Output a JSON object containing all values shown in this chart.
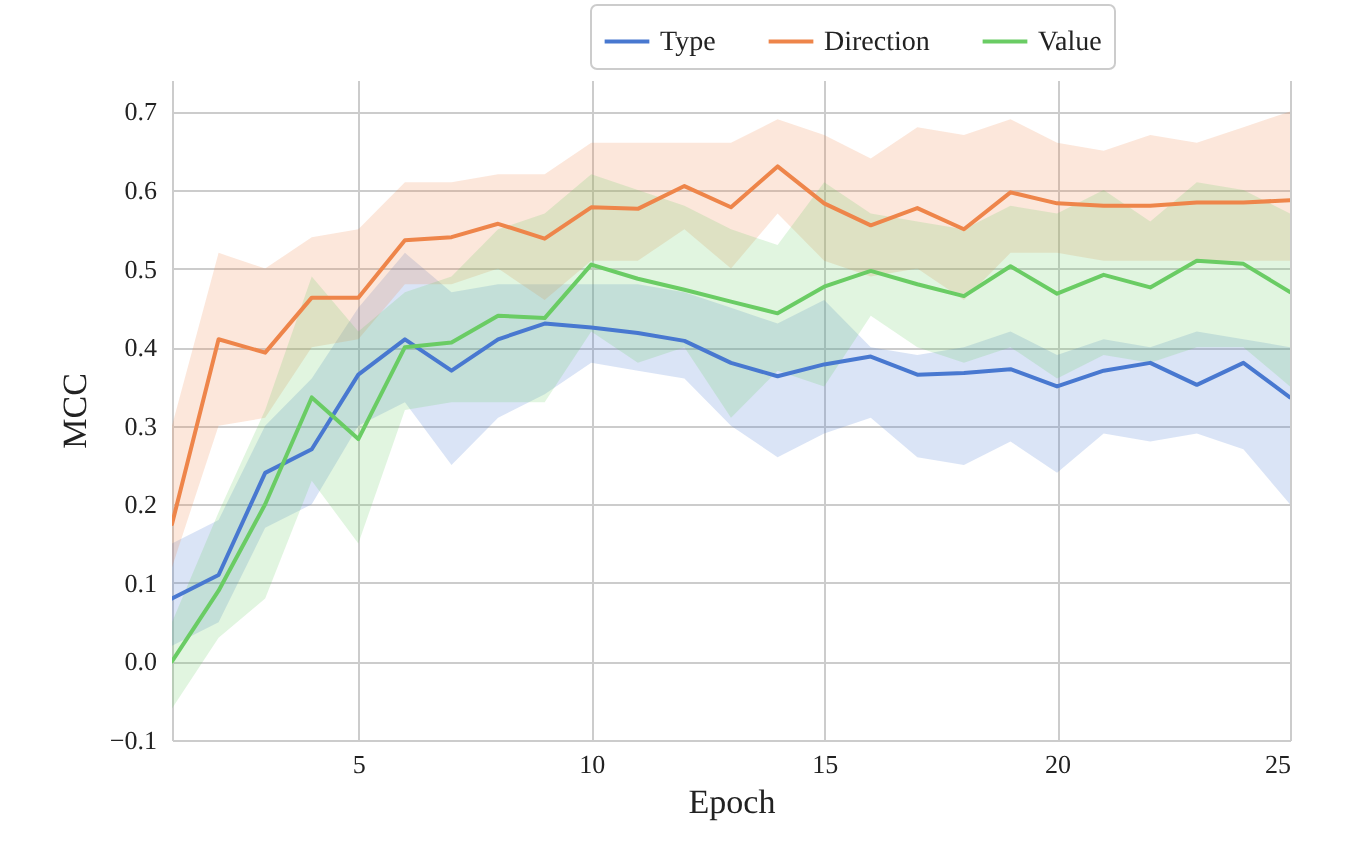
{
  "chart_data": {
    "type": "line",
    "xlabel": "Epoch",
    "ylabel": "MCC",
    "x": [
      1,
      2,
      3,
      4,
      5,
      6,
      7,
      8,
      9,
      10,
      11,
      12,
      13,
      14,
      15,
      16,
      17,
      18,
      19,
      20,
      21,
      22,
      23,
      24,
      25
    ],
    "xlim": [
      1,
      25
    ],
    "xticks": [
      5,
      10,
      15,
      20,
      25
    ],
    "ylim": [
      -0.1,
      0.74
    ],
    "yticks": [
      {
        "value": -0.1,
        "label": "−0.1"
      },
      {
        "value": 0,
        "label": "0.0"
      },
      0.1,
      0.2,
      0.3,
      0.4,
      0.5,
      0.6,
      0.7
    ],
    "grid": true,
    "legend": "top right",
    "line_style": "solid",
    "marker": "none",
    "series": [
      {
        "name": "Type",
        "color": "#4878d0",
        "values": [
          0.08,
          0.11,
          0.24,
          0.27,
          0.365,
          0.41,
          0.37,
          0.41,
          0.43,
          0.425,
          0.418,
          0.408,
          0.38,
          0.363,
          0.378,
          0.388,
          0.365,
          0.367,
          0.372,
          0.35,
          0.37,
          0.38,
          0.352,
          0.38,
          0.336
        ],
        "lower": [
          0.02,
          0.05,
          0.17,
          0.2,
          0.3,
          0.33,
          0.25,
          0.31,
          0.34,
          0.38,
          0.37,
          0.36,
          0.3,
          0.26,
          0.29,
          0.31,
          0.26,
          0.25,
          0.28,
          0.24,
          0.29,
          0.28,
          0.29,
          0.27,
          0.2
        ],
        "upper": [
          0.15,
          0.18,
          0.3,
          0.36,
          0.45,
          0.52,
          0.47,
          0.48,
          0.48,
          0.48,
          0.48,
          0.47,
          0.45,
          0.43,
          0.46,
          0.4,
          0.39,
          0.4,
          0.42,
          0.39,
          0.41,
          0.4,
          0.42,
          0.41,
          0.4
        ]
      },
      {
        "name": "Direction",
        "color": "#ee854a",
        "values": [
          0.175,
          0.41,
          0.393,
          0.463,
          0.463,
          0.536,
          0.54,
          0.557,
          0.538,
          0.578,
          0.576,
          0.605,
          0.578,
          0.63,
          0.583,
          0.555,
          0.577,
          0.55,
          0.597,
          0.583,
          0.58,
          0.58,
          0.584,
          0.584,
          0.587
        ],
        "lower": [
          0.12,
          0.3,
          0.31,
          0.4,
          0.41,
          0.48,
          0.48,
          0.5,
          0.46,
          0.51,
          0.51,
          0.55,
          0.5,
          0.57,
          0.51,
          0.49,
          0.5,
          0.46,
          0.52,
          0.52,
          0.51,
          0.51,
          0.51,
          0.51,
          0.51
        ],
        "upper": [
          0.3,
          0.52,
          0.5,
          0.54,
          0.55,
          0.61,
          0.61,
          0.62,
          0.62,
          0.66,
          0.66,
          0.66,
          0.66,
          0.69,
          0.67,
          0.64,
          0.68,
          0.67,
          0.69,
          0.66,
          0.65,
          0.67,
          0.66,
          0.68,
          0.7
        ]
      },
      {
        "name": "Value",
        "color": "#6acc64",
        "values": [
          0.0,
          0.09,
          0.2,
          0.336,
          0.283,
          0.4,
          0.406,
          0.44,
          0.437,
          0.505,
          0.487,
          0.473,
          0.458,
          0.443,
          0.477,
          0.497,
          0.48,
          0.465,
          0.503,
          0.468,
          0.492,
          0.476,
          0.51,
          0.506,
          0.47
        ],
        "lower": [
          -0.06,
          0.03,
          0.08,
          0.23,
          0.15,
          0.32,
          0.33,
          0.33,
          0.33,
          0.42,
          0.38,
          0.4,
          0.31,
          0.37,
          0.35,
          0.44,
          0.4,
          0.38,
          0.4,
          0.36,
          0.39,
          0.38,
          0.4,
          0.4,
          0.35
        ],
        "upper": [
          0.05,
          0.19,
          0.32,
          0.49,
          0.42,
          0.47,
          0.49,
          0.55,
          0.57,
          0.62,
          0.6,
          0.58,
          0.55,
          0.53,
          0.61,
          0.57,
          0.56,
          0.55,
          0.58,
          0.57,
          0.6,
          0.56,
          0.61,
          0.6,
          0.57
        ]
      }
    ]
  }
}
